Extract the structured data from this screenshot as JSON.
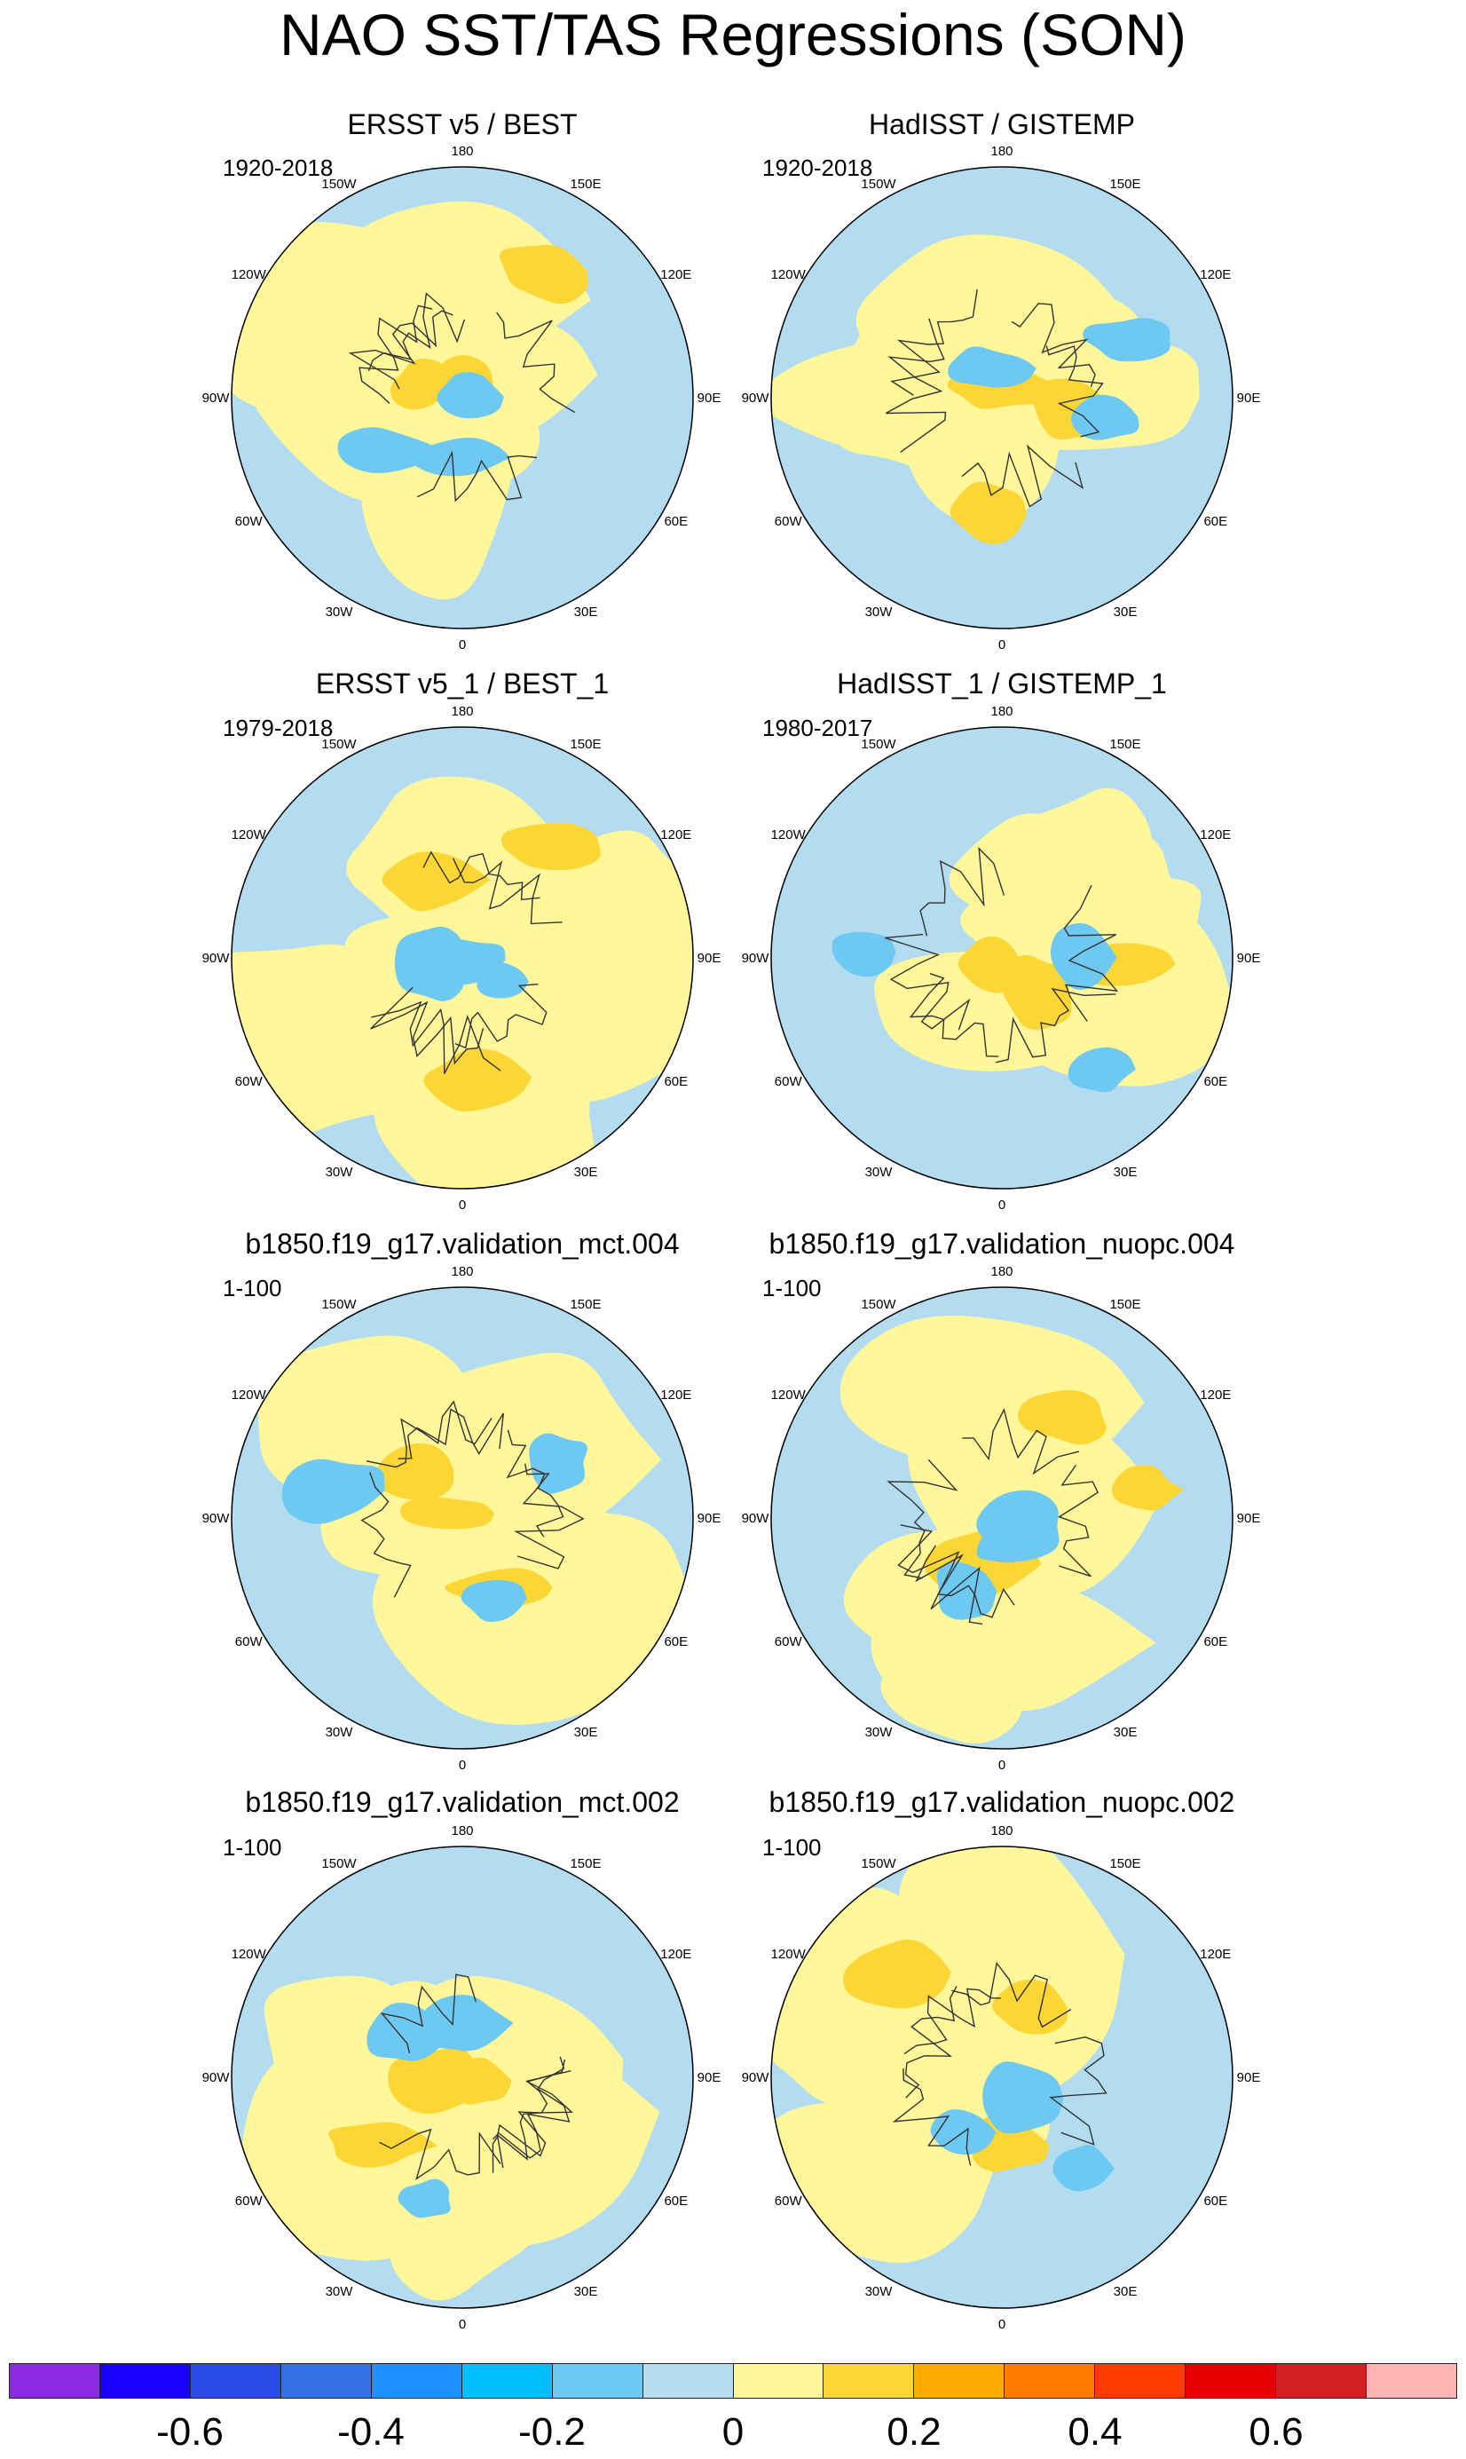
{
  "title": "NAO SST/TAS Regressions (SON)",
  "panels": [
    {
      "title": "ERSST v5 / BEST",
      "years": "1920-2018",
      "seed": 1
    },
    {
      "title": "HadISST / GISTEMP",
      "years": "1920-2018",
      "seed": 2
    },
    {
      "title": "ERSST v5_1 / BEST_1",
      "years": "1979-2018",
      "seed": 3
    },
    {
      "title": "HadISST_1 / GISTEMP_1",
      "years": "1980-2017",
      "seed": 4
    },
    {
      "title": "b1850.f19_g17.validation_mct.004",
      "years": "1-100",
      "seed": 5
    },
    {
      "title": "b1850.f19_g17.validation_nuopc.004",
      "years": "1-100",
      "seed": 6
    },
    {
      "title": "b1850.f19_g17.validation_mct.002",
      "years": "1-100",
      "seed": 7
    },
    {
      "title": "b1850.f19_g17.validation_nuopc.002",
      "years": "1-100",
      "seed": 8
    }
  ],
  "longitude_labels": [
    "180",
    "150E",
    "120E",
    "90E",
    "60E",
    "30E",
    "0",
    "30W",
    "60W",
    "90W",
    "120W",
    "150W"
  ],
  "colorbar": {
    "colors": [
      "#8a2be2",
      "#1a00ff",
      "#2b4be8",
      "#3572e8",
      "#1e90ff",
      "#00bfff",
      "#6ec9f2",
      "#b3dcf0",
      "#fff79a",
      "#fcd635",
      "#fcac00",
      "#ff7a00",
      "#ff3c00",
      "#e80000",
      "#d02020",
      "#ffb3b3"
    ],
    "labels": [
      "-0.6",
      "-0.4",
      "-0.2",
      "0",
      "0.2",
      "0.4",
      "0.6"
    ]
  }
}
